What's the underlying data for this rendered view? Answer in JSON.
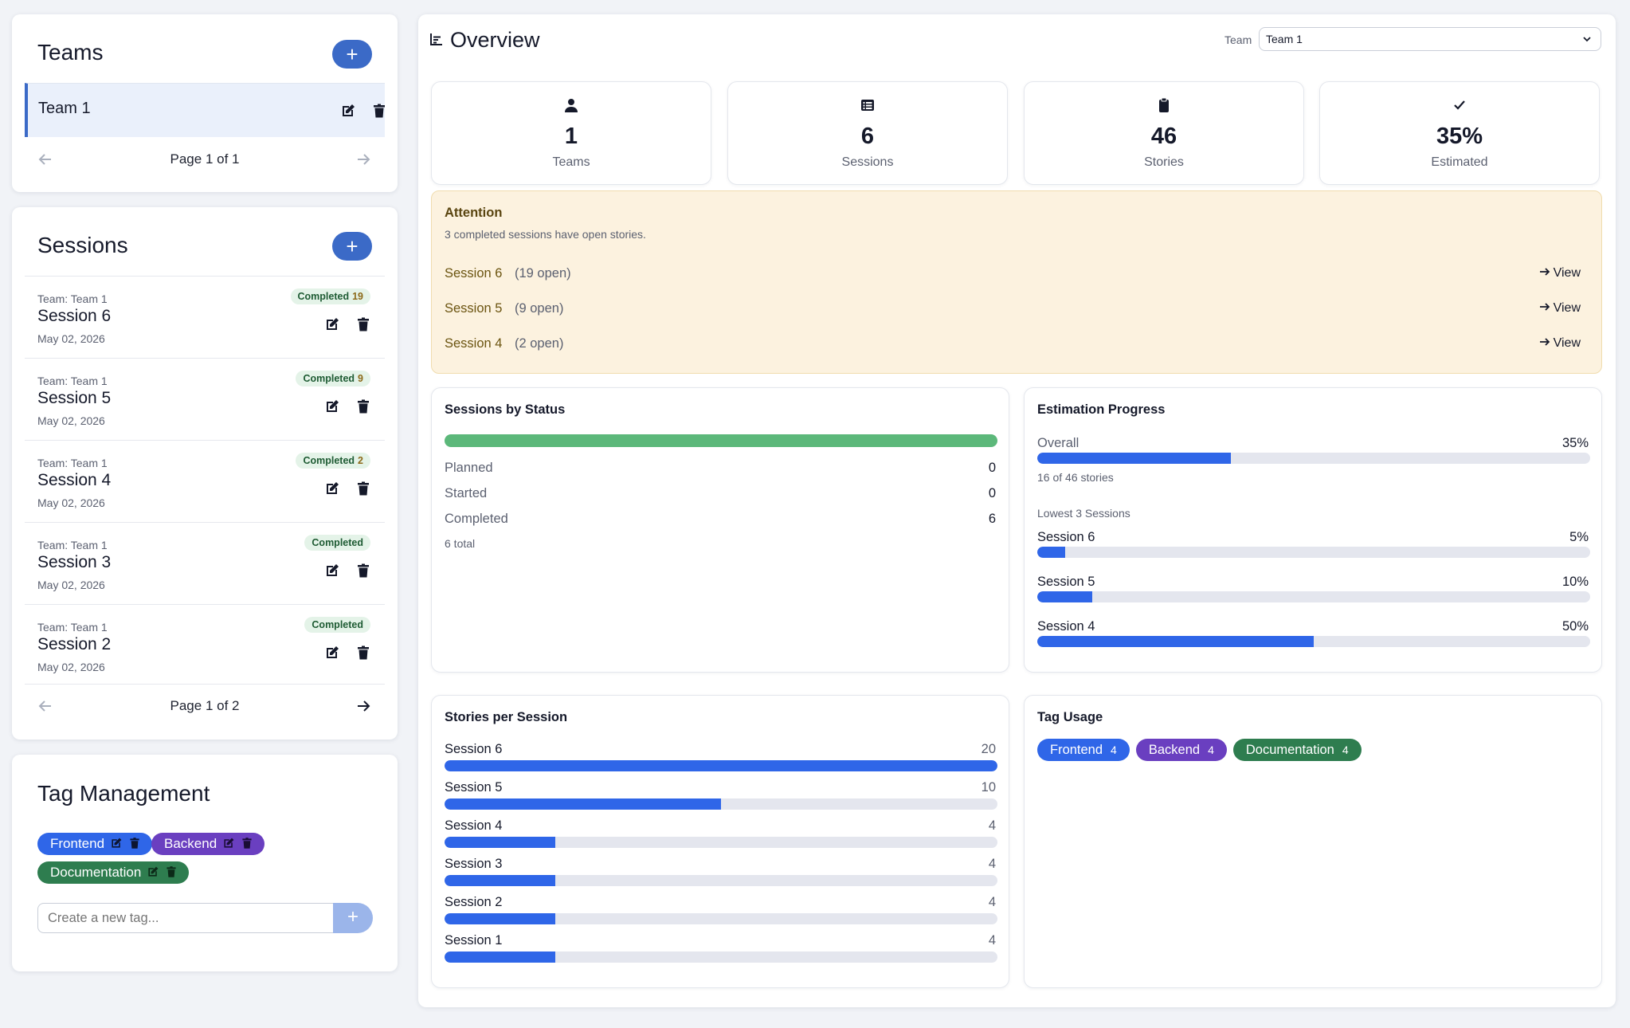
{
  "teams": {
    "title": "Teams",
    "add_label": "+",
    "items": [
      {
        "name": "Team 1"
      }
    ],
    "pager": "Page 1 of 1"
  },
  "sessions": {
    "title": "Sessions",
    "add_label": "+",
    "items": [
      {
        "team": "Team: Team 1",
        "name": "Session 6",
        "date": "May 02, 2026",
        "status": "Completed",
        "count": "19"
      },
      {
        "team": "Team: Team 1",
        "name": "Session 5",
        "date": "May 02, 2026",
        "status": "Completed",
        "count": "9"
      },
      {
        "team": "Team: Team 1",
        "name": "Session 4",
        "date": "May 02, 2026",
        "status": "Completed",
        "count": "2"
      },
      {
        "team": "Team: Team 1",
        "name": "Session 3",
        "date": "May 02, 2026",
        "status": "Completed",
        "count": ""
      },
      {
        "team": "Team: Team 1",
        "name": "Session 2",
        "date": "May 02, 2026",
        "status": "Completed",
        "count": ""
      }
    ],
    "pager": "Page 1 of 2"
  },
  "tag_management": {
    "title": "Tag Management",
    "tags": [
      {
        "name": "Frontend",
        "color": "#2f66e8"
      },
      {
        "name": "Backend",
        "color": "#6a3fc0"
      },
      {
        "name": "Documentation",
        "color": "#2e7d4f"
      }
    ],
    "input_placeholder": "Create a new tag...",
    "add_label": "+"
  },
  "overview": {
    "title": "Overview",
    "team_label": "Team",
    "team_selected": "Team 1",
    "stats": [
      {
        "icon": "user-icon",
        "value": "1",
        "label": "Teams"
      },
      {
        "icon": "list-icon",
        "value": "6",
        "label": "Sessions"
      },
      {
        "icon": "clipboard-icon",
        "value": "46",
        "label": "Stories"
      },
      {
        "icon": "check-icon",
        "value": "35%",
        "label": "Estimated"
      }
    ]
  },
  "attention": {
    "title": "Attention",
    "subtitle": "3 completed sessions have open stories.",
    "view_label": "View",
    "items": [
      {
        "session": "Session 6",
        "open": "(19 open)"
      },
      {
        "session": "Session 5",
        "open": "(9 open)"
      },
      {
        "session": "Session 4",
        "open": "(2 open)"
      }
    ]
  },
  "sessions_by_status": {
    "title": "Sessions by Status",
    "bar_color": "#5cb87a",
    "rows": [
      {
        "label": "Planned",
        "value": "0"
      },
      {
        "label": "Started",
        "value": "0"
      },
      {
        "label": "Completed",
        "value": "6"
      }
    ],
    "total": "6 total"
  },
  "estimation_progress": {
    "title": "Estimation Progress",
    "overall_label": "Overall",
    "overall_pct": "35%",
    "overall_fraction": 0.35,
    "overall_note": "16 of 46 stories",
    "lowest_label": "Lowest 3 Sessions",
    "lowest": [
      {
        "name": "Session 6",
        "pct": "5%",
        "fraction": 0.05
      },
      {
        "name": "Session 5",
        "pct": "10%",
        "fraction": 0.1
      },
      {
        "name": "Session 4",
        "pct": "50%",
        "fraction": 0.5
      }
    ]
  },
  "stories_per_session": {
    "title": "Stories per Session",
    "max": 20,
    "rows": [
      {
        "name": "Session 6",
        "value": 20
      },
      {
        "name": "Session 5",
        "value": 10
      },
      {
        "name": "Session 4",
        "value": 4
      },
      {
        "name": "Session 3",
        "value": 4
      },
      {
        "name": "Session 2",
        "value": 4
      },
      {
        "name": "Session 1",
        "value": 4
      }
    ]
  },
  "tag_usage": {
    "title": "Tag Usage",
    "tags": [
      {
        "name": "Frontend",
        "count": "4",
        "color": "#2f66e8"
      },
      {
        "name": "Backend",
        "count": "4",
        "color": "#6a3fc0"
      },
      {
        "name": "Documentation",
        "count": "4",
        "color": "#2e7d4f"
      }
    ]
  }
}
